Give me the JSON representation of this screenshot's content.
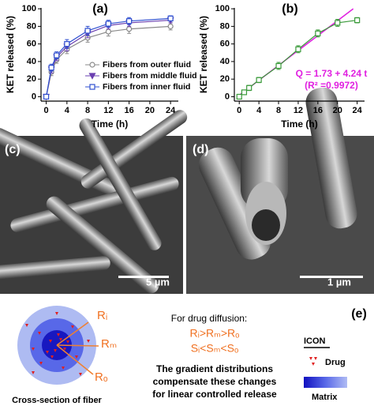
{
  "chart_data": [
    {
      "type": "line",
      "title": "(a)",
      "xlabel": "Time (h)",
      "ylabel": "KET released (%)",
      "xlim": [
        -1,
        25.5
      ],
      "ylim": [
        -5,
        101
      ],
      "xticks": [
        0,
        4,
        8,
        12,
        16,
        20,
        24
      ],
      "yticks": [
        0,
        20,
        40,
        60,
        80,
        100
      ],
      "legend": "lower right",
      "series": [
        {
          "name": "Fibers from outer fluid",
          "color": "#8a8a8a",
          "marker": "circle",
          "filled": false,
          "x": [
            0,
            1,
            2,
            4,
            8,
            12,
            16,
            24
          ],
          "values": [
            0,
            28,
            42,
            54,
            67,
            74,
            77,
            80
          ],
          "errors": [
            0,
            4,
            4,
            5,
            5,
            5,
            5,
            4
          ]
        },
        {
          "name": "Fibers from middle fluid",
          "color": "#6a3fb0",
          "marker": "triangle-down",
          "filled": true,
          "x": [
            0,
            1,
            2,
            4,
            8,
            12,
            16,
            24
          ],
          "values": [
            0,
            31,
            45,
            57,
            72,
            81,
            84,
            87
          ],
          "errors": [
            0,
            4,
            4,
            5,
            5,
            4,
            4,
            3
          ]
        },
        {
          "name": "Fibers from inner fluid",
          "color": "#3050d0",
          "marker": "square",
          "filled": false,
          "x": [
            0,
            1,
            2,
            4,
            8,
            12,
            16,
            24
          ],
          "values": [
            0,
            33,
            47,
            60,
            75,
            83,
            86,
            89
          ],
          "errors": [
            0,
            4,
            4,
            5,
            5,
            4,
            4,
            3
          ]
        }
      ]
    },
    {
      "type": "line",
      "title": "(b)",
      "xlabel": "Time (h)",
      "ylabel": "KET released (%)",
      "xlim": [
        -1,
        25.5
      ],
      "ylim": [
        -5,
        101
      ],
      "xticks": [
        0,
        4,
        8,
        12,
        16,
        20,
        24
      ],
      "yticks": [
        0,
        20,
        40,
        60,
        80,
        100
      ],
      "annotations": [
        "Q = 1.73 + 4.24 t",
        "(R² =0.9972)"
      ],
      "annotation_color": "#e020e0",
      "series": [
        {
          "color": "#e020e0",
          "marker": "none",
          "x": [
            0,
            23.2
          ],
          "values": [
            1.7,
            100
          ]
        },
        {
          "color": "#3a9a3a",
          "marker": "square",
          "filled": false,
          "x": [
            0,
            1,
            2,
            4,
            8,
            12,
            16,
            20,
            24
          ],
          "values": [
            0,
            5,
            10,
            19,
            35,
            54,
            72,
            84,
            87
          ],
          "errors": [
            0,
            2,
            3,
            3,
            4,
            4,
            4,
            4,
            3
          ]
        }
      ]
    }
  ],
  "panels": {
    "c": {
      "label": "(c)",
      "scale": "5 µm"
    },
    "d": {
      "label": "(d)",
      "scale": "1 µm"
    }
  },
  "diagram": {
    "label": "(e)",
    "radii": [
      "Rᵢ",
      "Rₘ",
      "Rₒ"
    ],
    "caption": "Cross-section of fiber",
    "heading": "For drug diffusion:",
    "relation1": "Rᵢ>Rₘ>Rₒ",
    "relation2": "Sᵢ<Sₘ<Sₒ",
    "text": [
      "The gradient distributions",
      "compensate these changes",
      "for linear controlled release"
    ],
    "icon_title": "ICON",
    "drug": "Drug",
    "matrix": "Matrix"
  }
}
